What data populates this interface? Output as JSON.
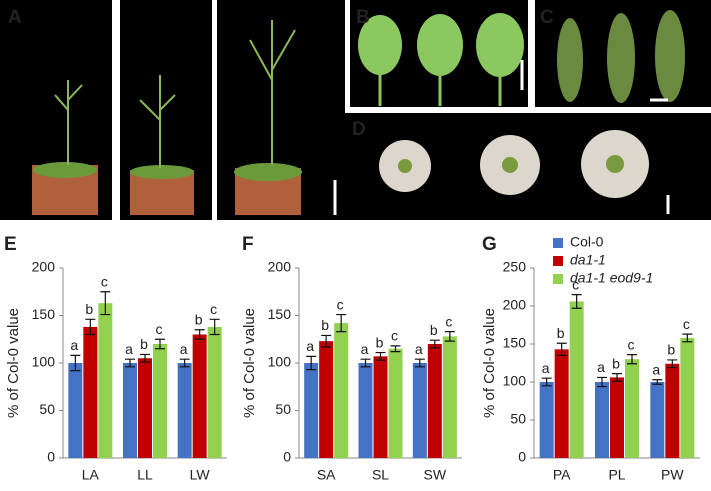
{
  "panel_labels": [
    "A",
    "B",
    "C",
    "D"
  ],
  "chart_data": [
    {
      "type": "bar",
      "panel": "E",
      "y_label": "% of Col-0 value",
      "categories": [
        "LA",
        "LL",
        "LW"
      ],
      "ylim": [
        0,
        200
      ],
      "yticks": [
        0,
        50,
        100,
        150,
        200
      ],
      "series": [
        {
          "color": "#4472c4",
          "values": [
            100,
            100,
            100
          ],
          "errors": [
            8,
            4,
            4
          ],
          "labels": [
            "a",
            "a",
            "a"
          ]
        },
        {
          "color": "#c00000",
          "values": [
            138,
            105,
            130
          ],
          "errors": [
            8,
            4,
            5
          ],
          "labels": [
            "b",
            "b",
            "b"
          ]
        },
        {
          "color": "#92d050",
          "values": [
            163,
            120,
            138
          ],
          "errors": [
            12,
            5,
            8
          ],
          "labels": [
            "c",
            "c",
            "c"
          ]
        }
      ]
    },
    {
      "type": "bar",
      "panel": "F",
      "y_label": "% of Col-0 value",
      "categories": [
        "SA",
        "SL",
        "SW"
      ],
      "ylim": [
        0,
        200
      ],
      "yticks": [
        0,
        50,
        100,
        150,
        200
      ],
      "series": [
        {
          "color": "#4472c4",
          "values": [
            100,
            100,
            100
          ],
          "errors": [
            7,
            4,
            4
          ],
          "labels": [
            "a",
            "a",
            "a"
          ]
        },
        {
          "color": "#c00000",
          "values": [
            123,
            107,
            120
          ],
          "errors": [
            6,
            4,
            4
          ],
          "labels": [
            "b",
            "b",
            "b"
          ]
        },
        {
          "color": "#92d050",
          "values": [
            142,
            115,
            128
          ],
          "errors": [
            9,
            3,
            5
          ],
          "labels": [
            "c",
            "c",
            "c"
          ]
        }
      ]
    },
    {
      "type": "bar",
      "panel": "G",
      "y_label": "% of Col-0 value",
      "legend": "upper-right",
      "categories": [
        "PA",
        "PL",
        "PW"
      ],
      "ylim": [
        0,
        250
      ],
      "yticks": [
        0,
        50,
        100,
        150,
        200,
        250
      ],
      "series": [
        {
          "name": "Col-0",
          "color": "#4472c4",
          "values": [
            100,
            100,
            100
          ],
          "errors": [
            5,
            6,
            3
          ],
          "labels": [
            "a",
            "a",
            "a"
          ]
        },
        {
          "name": "da1-1",
          "color": "#c00000",
          "values": [
            143,
            106,
            124
          ],
          "errors": [
            8,
            5,
            5
          ],
          "labels": [
            "b",
            "b",
            "b"
          ]
        },
        {
          "name": "da1-1 eod9-1",
          "color": "#92d050",
          "values": [
            206,
            130,
            158
          ],
          "errors": [
            9,
            6,
            5
          ],
          "labels": [
            "c",
            "c",
            "c"
          ]
        }
      ]
    }
  ]
}
